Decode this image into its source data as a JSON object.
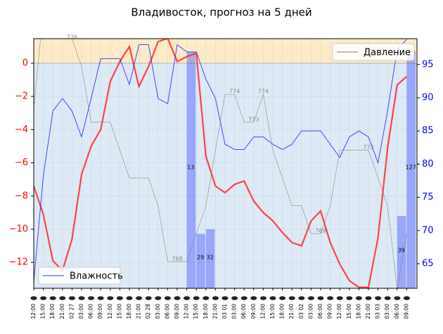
{
  "chart_data": {
    "type": "line",
    "title": "Владивосток, прогноз на 5 дней",
    "categories": [
      "12:00",
      "15:00",
      "18:00",
      "21:00",
      "02 27",
      "03:00",
      "06:00",
      "09:00",
      "12:00",
      "15:00",
      "18:00",
      "21:00",
      "02 28",
      "03:00",
      "06:00",
      "09:00",
      "12:00",
      "15:00",
      "18:00",
      "21:00",
      "03 01",
      "03:00",
      "06:00",
      "09:00",
      "12:00",
      "15:00",
      "18:00",
      "21:00",
      "03 02",
      "03:00",
      "06:00",
      "09:00",
      "12:00",
      "15:00",
      "18:00",
      "21:00",
      "03 03",
      "03:00",
      "06:00",
      "09:00"
    ],
    "ylim": [
      -13.56,
      1.48
    ],
    "yticks": [
      {
        "value": -12,
        "label": "−12"
      },
      {
        "value": -10,
        "label": "−10"
      },
      {
        "value": -8,
        "label": "−8"
      },
      {
        "value": -6,
        "label": "−6"
      },
      {
        "value": -4,
        "label": "−4"
      },
      {
        "value": -2,
        "label": "−2"
      },
      0
    ],
    "y2lim": [
      61.3,
      98.9
    ],
    "y2ticks": [
      65,
      70,
      75,
      80,
      85,
      90,
      95
    ],
    "y2color": "#0000ff",
    "grid": true,
    "series": [
      {
        "color": "#ff3333",
        "values": [
          -7.4,
          -9.1,
          -11.9,
          -12.5,
          -10.6,
          -6.7,
          -5.0,
          -4.0,
          -1.1,
          0.1,
          1.0,
          -1.4,
          -0.2,
          1.3,
          1.5,
          0.1,
          0.4,
          0.6,
          -5.6,
          -7.4,
          -7.8,
          -7.3,
          -7.1,
          -8.3,
          -9.0,
          -9.5,
          -10.2,
          -10.8,
          -11.0,
          -9.5,
          -8.9,
          -10.8,
          -12.1,
          -13.1,
          -13.5,
          -13.5,
          -10.5,
          -5.1,
          -1.3,
          -0.8
        ]
      },
      {
        "name": "Влажность",
        "color": "#3333ff",
        "axis": "y2",
        "legend": "lower left",
        "values": [
          62.3,
          78.2,
          88.0,
          89.9,
          88.0,
          84.1,
          89.9,
          95.9,
          95.9,
          95.9,
          92.0,
          98.0,
          98.0,
          89.9,
          89.1,
          98.0,
          96.9,
          96.9,
          92.8,
          89.9,
          83.0,
          82.2,
          82.2,
          84.1,
          84.1,
          83.0,
          82.2,
          83.0,
          85.0,
          85.0,
          85.0,
          83.0,
          81.0,
          84.1,
          85.0,
          84.1,
          80.2,
          88.0,
          97.3,
          98.8
        ]
      },
      {
        "name": "Давление",
        "color": "#808080",
        "axis": "p",
        "legend": "upper right",
        "plim": [
          767.04,
          776.0
        ],
        "values": [
          773.5,
          777,
          777,
          777,
          776,
          775,
          773,
          773,
          773,
          772,
          771,
          771,
          771,
          770,
          768,
          768,
          768,
          769,
          770,
          772,
          774,
          774,
          773,
          773,
          774,
          772,
          771,
          770,
          770,
          769,
          769,
          770,
          772,
          772,
          772,
          772,
          771,
          770,
          767,
          769
        ],
        "value_labels": [
          null,
          null,
          null,
          null,
          "776",
          null,
          null,
          null,
          null,
          null,
          null,
          null,
          null,
          null,
          null,
          "768",
          null,
          null,
          null,
          null,
          null,
          "774",
          null,
          "773",
          "774",
          null,
          null,
          null,
          null,
          null,
          "769",
          null,
          null,
          null,
          null,
          "772",
          null,
          null,
          null,
          null
        ]
      }
    ],
    "bars": {
      "color": "#3344ff",
      "axis": "y2",
      "values": [
        null,
        null,
        null,
        null,
        null,
        null,
        null,
        null,
        null,
        null,
        null,
        null,
        null,
        null,
        null,
        null,
        96.9,
        69.5,
        70.2,
        null,
        null,
        null,
        null,
        null,
        null,
        null,
        null,
        null,
        null,
        null,
        null,
        null,
        null,
        null,
        null,
        null,
        null,
        null,
        72.2,
        97.1
      ],
      "notes": [
        null,
        null,
        null,
        null,
        null,
        null,
        null,
        null,
        null,
        null,
        null,
        null,
        null,
        null,
        null,
        null,
        "13",
        "29",
        "32",
        null,
        null,
        null,
        null,
        null,
        null,
        null,
        null,
        null,
        null,
        null,
        null,
        null,
        null,
        null,
        null,
        null,
        null,
        null,
        "39",
        "127"
      ]
    }
  }
}
